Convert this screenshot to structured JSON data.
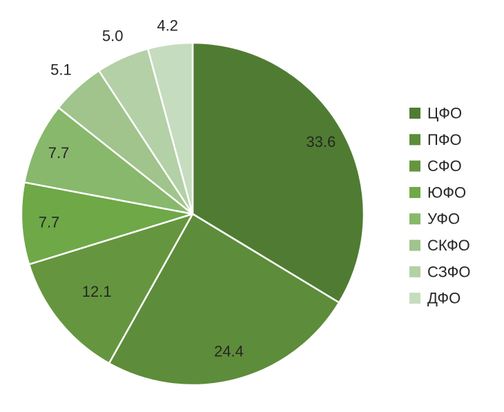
{
  "chart_data": {
    "type": "pie",
    "categories": [
      "ЦФО",
      "ПФО",
      "СФО",
      "ЮФО",
      "УФО",
      "СКФО",
      "СЗФО",
      "ДФО"
    ],
    "values": [
      33.6,
      24.4,
      12.1,
      7.7,
      7.7,
      5.1,
      5.0,
      4.2
    ],
    "value_labels": [
      "33.6",
      "24.4",
      "12.1",
      "7.7",
      "7.7",
      "5.1",
      "5.0",
      "4.2"
    ],
    "colors": [
      "#4f7c32",
      "#5d8c3a",
      "#65963f",
      "#6ea847",
      "#88b86c",
      "#a0c48c",
      "#b4d0a6",
      "#c6dcbe"
    ],
    "start_angle": "12 o'clock",
    "direction": "clockwise",
    "legend_position": "right",
    "slice_border_color": "#ffffff"
  }
}
